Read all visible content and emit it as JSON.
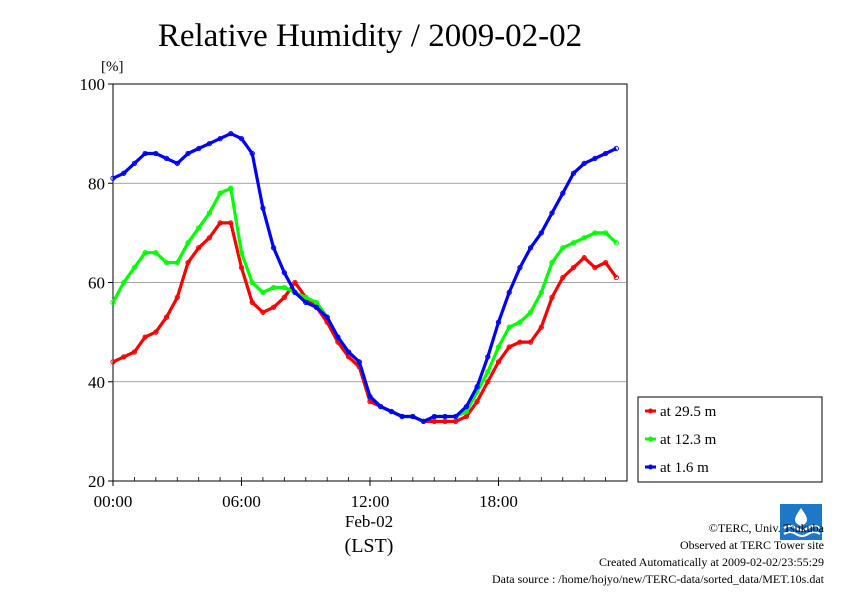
{
  "chart_data": {
    "type": "line",
    "title": "Relative Humidity / 2009-02-02",
    "ylabel": "[%]",
    "xlabel": "(LST)",
    "x_date_label": "Feb-02",
    "xlim": [
      "00:00",
      "24:00"
    ],
    "ylim": [
      20,
      100
    ],
    "yticks": [
      20,
      40,
      60,
      80,
      100
    ],
    "xticks": [
      "00:00",
      "06:00",
      "12:00",
      "18:00"
    ],
    "grid": "horizontal",
    "legend_position": "right-bottom",
    "x_hours": [
      0,
      0.5,
      1,
      1.5,
      2,
      2.5,
      3,
      3.5,
      4,
      4.5,
      5,
      5.5,
      6,
      6.5,
      7,
      7.5,
      8,
      8.5,
      9,
      9.5,
      10,
      10.5,
      11,
      11.5,
      12,
      12.5,
      13,
      13.5,
      14,
      14.5,
      15,
      15.5,
      16,
      16.5,
      17,
      17.5,
      18,
      18.5,
      19,
      19.5,
      20,
      20.5,
      21,
      21.5,
      22,
      22.5,
      23,
      23.5
    ],
    "series": [
      {
        "name": "at 29.5 m",
        "color": "#ff0000",
        "values": [
          44,
          45,
          46,
          49,
          50,
          53,
          57,
          64,
          67,
          69,
          72,
          72,
          63,
          56,
          54,
          55,
          57,
          60,
          57,
          55,
          52,
          48,
          45,
          43,
          36,
          35,
          34,
          33,
          33,
          32,
          32,
          32,
          32,
          33,
          36,
          40,
          44,
          47,
          48,
          48,
          51,
          57,
          61,
          63,
          65,
          63,
          64,
          61
        ]
      },
      {
        "name": "at 12.3 m",
        "color": "#00ff00",
        "values": [
          56,
          60,
          63,
          66,
          66,
          64,
          64,
          68,
          71,
          74,
          78,
          79,
          66,
          60,
          58,
          59,
          59,
          58,
          57,
          56,
          53,
          49,
          46,
          44,
          37,
          35,
          34,
          33,
          33,
          32,
          33,
          33,
          33,
          34,
          38,
          42,
          47,
          51,
          52,
          54,
          58,
          64,
          67,
          68,
          69,
          70,
          70,
          68
        ]
      },
      {
        "name": "at 1.6 m",
        "color": "#0000ff",
        "values": [
          81,
          82,
          84,
          86,
          86,
          85,
          84,
          86,
          87,
          88,
          89,
          90,
          89,
          86,
          75,
          67,
          62,
          58,
          56,
          55,
          53,
          49,
          46,
          44,
          37,
          35,
          34,
          33,
          33,
          32,
          33,
          33,
          33,
          35,
          39,
          45,
          52,
          58,
          63,
          67,
          70,
          74,
          78,
          82,
          84,
          85,
          86,
          87
        ]
      }
    ]
  },
  "footer": {
    "copyright": "©TERC, Univ. Tsukuba",
    "observed": "Observed at TERC Tower site",
    "created": "Created Automatically at 2009-02-02/23:55:29",
    "source": "Data source : /home/hojyo/new/TERC-data/sorted_data/MET.10s.dat"
  },
  "logo_text": "TERC"
}
